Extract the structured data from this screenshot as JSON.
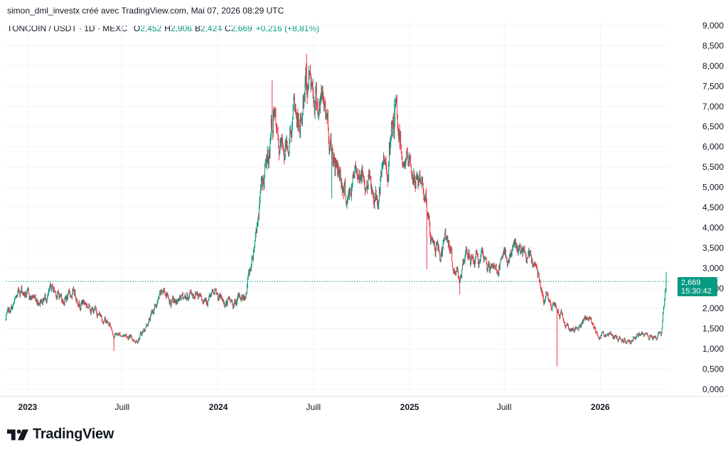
{
  "header": {
    "attribution": "simon_dml_investx créé avec TradingView.com, Mai 07, 2026 08:29 UTC"
  },
  "legend": {
    "symbol": "TONCOIN / USDT · 1D · MEXC",
    "open_label": "O",
    "open": "2,452",
    "high_label": "H",
    "high": "2,906",
    "low_label": "B",
    "low": "2,424",
    "close_label": "C",
    "close": "2,669",
    "change": "+0,216 (+8,81%)"
  },
  "price_tag": {
    "price": "2,669",
    "countdown": "15:30:42"
  },
  "branding": {
    "name": "TradingView"
  },
  "colors": {
    "up": "#089981",
    "down": "#f23645",
    "grid": "#f0f3fa",
    "text": "#131722",
    "last_price_line": "#089981"
  },
  "icons": {
    "logo": "tradingview-logo-icon"
  },
  "chart_data": {
    "type": "candlestick",
    "title": "TONCOIN / USDT · 1D · MEXC",
    "ylim": [
      -0.2,
      9.0
    ],
    "y_ticks": [
      "9,000",
      "8,500",
      "8,000",
      "7,500",
      "7,000",
      "6,500",
      "6,000",
      "5,500",
      "5,000",
      "4,500",
      "4,000",
      "3,500",
      "3,000",
      "2,500",
      "2,000",
      "1,500",
      "1,000",
      "0,500",
      "0,000"
    ],
    "y_tick_values": [
      9,
      8.5,
      8,
      7.5,
      7,
      6.5,
      6,
      5.5,
      5,
      4.5,
      4,
      3.5,
      3,
      2.5,
      2,
      1.5,
      1,
      0.5,
      0
    ],
    "x_ticks": [
      {
        "label": "2023",
        "date": "2023-01-01",
        "bold": true
      },
      {
        "label": "Juill",
        "date": "2023-07-01",
        "bold": false
      },
      {
        "label": "2024",
        "date": "2024-01-01",
        "bold": true
      },
      {
        "label": "Juill",
        "date": "2024-07-01",
        "bold": false
      },
      {
        "label": "2025",
        "date": "2025-01-01",
        "bold": true
      },
      {
        "label": "Juill",
        "date": "2025-07-01",
        "bold": false
      },
      {
        "label": "2026",
        "date": "2026-01-01",
        "bold": true
      }
    ],
    "x_range": [
      "2022-11-20",
      "2026-05-07"
    ],
    "last_price": 2.669,
    "anchors": [
      [
        "2022-11-20",
        1.72
      ],
      [
        "2022-12-01",
        1.95
      ],
      [
        "2022-12-20",
        2.45
      ],
      [
        "2023-01-05",
        2.25
      ],
      [
        "2023-02-01",
        2.3
      ],
      [
        "2023-02-20",
        2.42
      ],
      [
        "2023-03-10",
        2.25
      ],
      [
        "2023-04-01",
        2.35
      ],
      [
        "2023-05-01",
        2.05
      ],
      [
        "2023-06-01",
        1.7
      ],
      [
        "2023-06-15",
        1.38
      ],
      [
        "2023-07-10",
        1.35
      ],
      [
        "2023-07-25",
        1.22
      ],
      [
        "2023-08-10",
        1.45
      ],
      [
        "2023-09-01",
        2.0
      ],
      [
        "2023-09-20",
        2.45
      ],
      [
        "2023-10-10",
        2.1
      ],
      [
        "2023-11-01",
        2.3
      ],
      [
        "2023-11-20",
        2.45
      ],
      [
        "2023-12-10",
        2.35
      ],
      [
        "2024-01-01",
        2.2
      ],
      [
        "2024-02-01",
        2.1
      ],
      [
        "2024-02-20",
        2.3
      ],
      [
        "2024-03-05",
        3.2
      ],
      [
        "2024-03-20",
        4.7
      ],
      [
        "2024-04-05",
        5.6
      ],
      [
        "2024-04-15",
        6.9
      ],
      [
        "2024-04-25",
        5.6
      ],
      [
        "2024-05-10",
        6.1
      ],
      [
        "2024-05-25",
        6.9
      ],
      [
        "2024-06-05",
        6.4
      ],
      [
        "2024-06-15",
        7.4
      ],
      [
        "2024-06-25",
        7.8
      ],
      [
        "2024-07-10",
        7.2
      ],
      [
        "2024-07-25",
        6.9
      ],
      [
        "2024-08-05",
        6.0
      ],
      [
        "2024-08-20",
        5.4
      ],
      [
        "2024-09-05",
        4.7
      ],
      [
        "2024-09-25",
        5.55
      ],
      [
        "2024-10-10",
        5.2
      ],
      [
        "2024-11-01",
        4.8
      ],
      [
        "2024-11-20",
        5.6
      ],
      [
        "2024-12-05",
        6.75
      ],
      [
        "2024-12-20",
        5.9
      ],
      [
        "2025-01-10",
        5.3
      ],
      [
        "2025-02-01",
        4.9
      ],
      [
        "2025-02-10",
        3.7
      ],
      [
        "2025-03-01",
        3.3
      ],
      [
        "2025-03-15",
        3.8
      ],
      [
        "2025-03-25",
        2.9
      ],
      [
        "2025-04-10",
        2.95
      ],
      [
        "2025-04-25",
        3.3
      ],
      [
        "2025-05-15",
        3.2
      ],
      [
        "2025-06-10",
        2.9
      ],
      [
        "2025-07-01",
        3.2
      ],
      [
        "2025-07-20",
        3.5
      ],
      [
        "2025-08-10",
        3.2
      ],
      [
        "2025-09-01",
        3.05
      ],
      [
        "2025-09-15",
        2.45
      ],
      [
        "2025-10-01",
        2.05
      ],
      [
        "2025-10-20",
        1.85
      ],
      [
        "2025-11-05",
        1.45
      ],
      [
        "2025-11-25",
        1.6
      ],
      [
        "2025-12-10",
        1.75
      ],
      [
        "2025-12-25",
        1.45
      ],
      [
        "2026-01-15",
        1.35
      ],
      [
        "2026-02-15",
        1.25
      ],
      [
        "2026-03-20",
        1.3
      ],
      [
        "2026-04-10",
        1.3
      ],
      [
        "2026-04-28",
        1.42
      ],
      [
        "2026-05-07",
        2.669
      ]
    ],
    "spikes": [
      {
        "date": "2023-06-15",
        "low": 0.95
      },
      {
        "date": "2024-04-13",
        "high": 7.65
      },
      {
        "date": "2024-06-18",
        "high": 8.3
      },
      {
        "date": "2024-08-05",
        "low": 4.72
      },
      {
        "date": "2024-12-03",
        "high": 7.2
      },
      {
        "date": "2025-02-03",
        "low": 2.98
      },
      {
        "date": "2025-04-07",
        "low": 2.35
      },
      {
        "date": "2025-10-10",
        "low": 0.57
      },
      {
        "date": "2026-05-07",
        "high": 2.906
      }
    ]
  }
}
